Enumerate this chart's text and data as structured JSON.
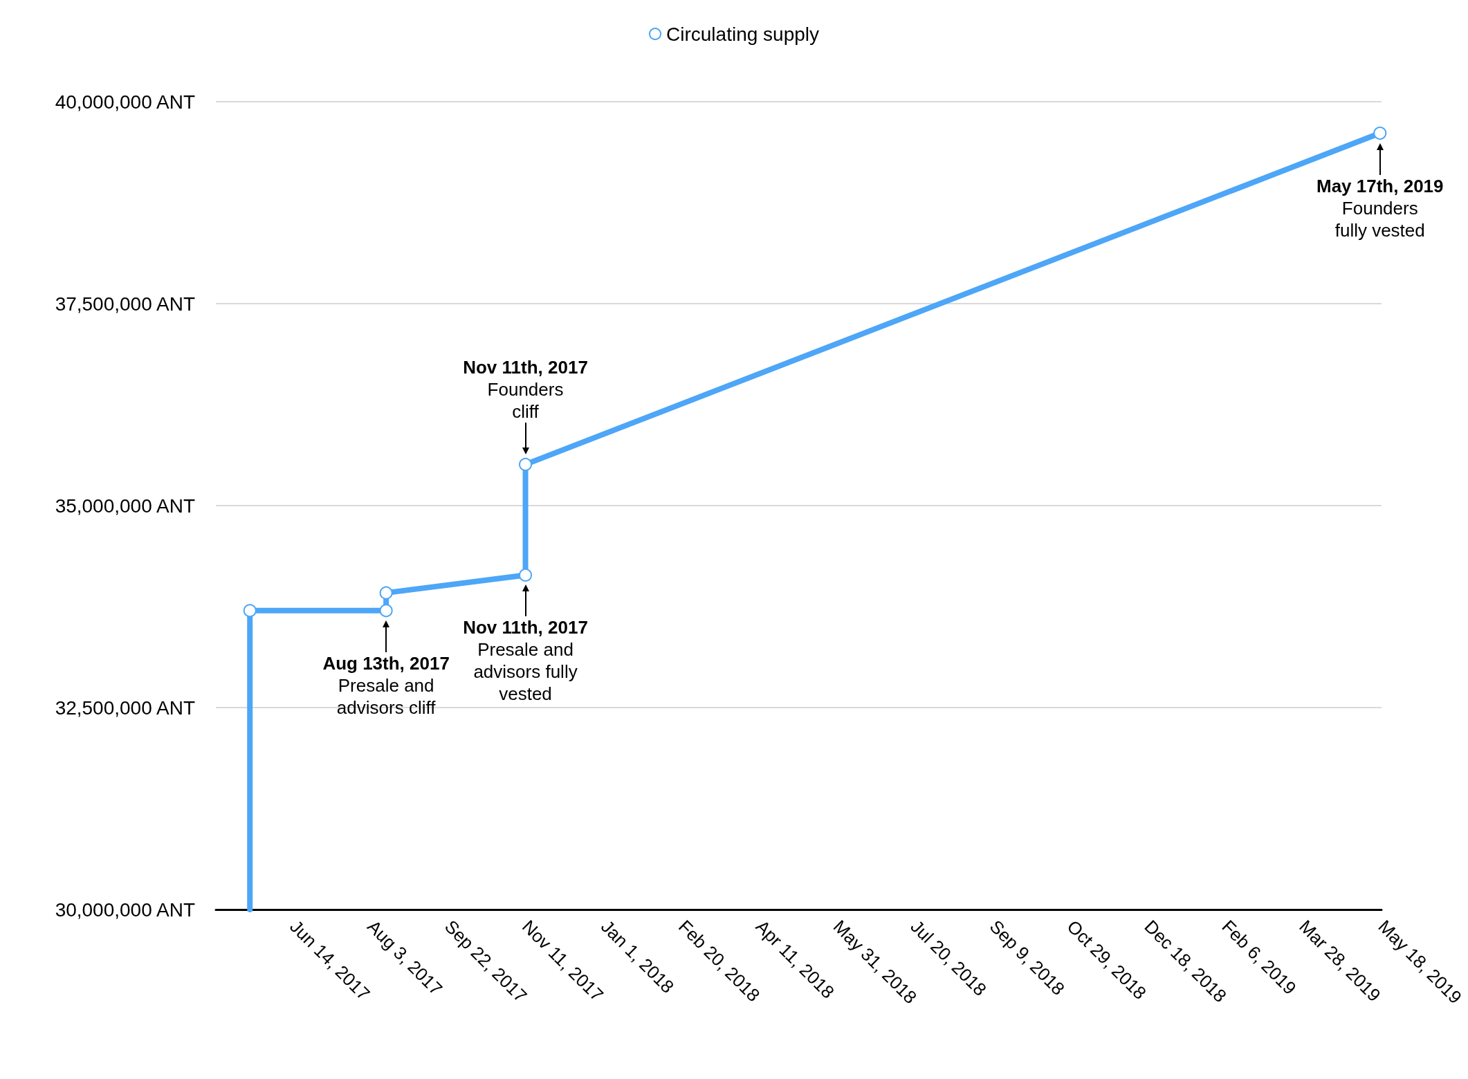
{
  "chart_data": {
    "type": "line",
    "x": [
      "2017-05-17",
      "2017-05-17",
      "2017-08-13",
      "2017-08-13",
      "2017-11-11",
      "2017-11-11",
      "2019-05-17"
    ],
    "series": [
      {
        "name": "Circulating supply",
        "color": "#4da6f7",
        "values": [
          30000000,
          33700000,
          33700000,
          33920000,
          34140000,
          35510000,
          39610000
        ]
      }
    ],
    "xlim": [
      "2017-04-25",
      "2019-05-18"
    ],
    "xticks": [
      {
        "value": "2017-06-14",
        "label": "Jun 14, 2017"
      },
      {
        "value": "2017-08-03",
        "label": "Aug 3, 2017"
      },
      {
        "value": "2017-09-22",
        "label": "Sep 22, 2017"
      },
      {
        "value": "2017-11-11",
        "label": "Nov 11, 2017"
      },
      {
        "value": "2018-01-01",
        "label": "Jan 1, 2018"
      },
      {
        "value": "2018-02-20",
        "label": "Feb 20, 2018"
      },
      {
        "value": "2018-04-11",
        "label": "Apr 11, 2018"
      },
      {
        "value": "2018-05-31",
        "label": "May 31, 2018"
      },
      {
        "value": "2018-07-20",
        "label": "Jul 20, 2018"
      },
      {
        "value": "2018-09-09",
        "label": "Sep 9, 2018"
      },
      {
        "value": "2018-10-29",
        "label": "Oct 29, 2018"
      },
      {
        "value": "2018-12-18",
        "label": "Dec 18, 2018"
      },
      {
        "value": "2019-02-06",
        "label": "Feb 6, 2019"
      },
      {
        "value": "2019-03-28",
        "label": "Mar 28, 2019"
      },
      {
        "value": "2019-05-18",
        "label": "May 18, 2019"
      }
    ],
    "ylim": [
      30000000,
      40000000
    ],
    "yticks": [
      {
        "value": 30000000,
        "label": "30,000,000 ANT"
      },
      {
        "value": 32500000,
        "label": "32,500,000 ANT"
      },
      {
        "value": 35000000,
        "label": "35,000,000 ANT"
      },
      {
        "value": 37500000,
        "label": "37,500,000 ANT"
      },
      {
        "value": 40000000,
        "label": "40,000,000 ANT"
      }
    ],
    "annotations": [
      {
        "text": "Aug 13th, 2017\nPresale and\nadvisors cliff",
        "x": "2017-08-13",
        "y": 33700000
      },
      {
        "text": "Nov 11th, 2017\nPresale and\nadvisors fully\nvested",
        "x": "2017-11-11",
        "y": 34140000
      },
      {
        "text": "Nov 11th, 2017\nFounders\ncliff",
        "x": "2017-11-11",
        "y": 35510000
      },
      {
        "text": "May 17th, 2019\nFounders\nfully vested",
        "x": "2019-05-17",
        "y": 39610000
      }
    ],
    "grid": "y",
    "legend": "top",
    "marker": "circle",
    "line_style": "solid"
  }
}
